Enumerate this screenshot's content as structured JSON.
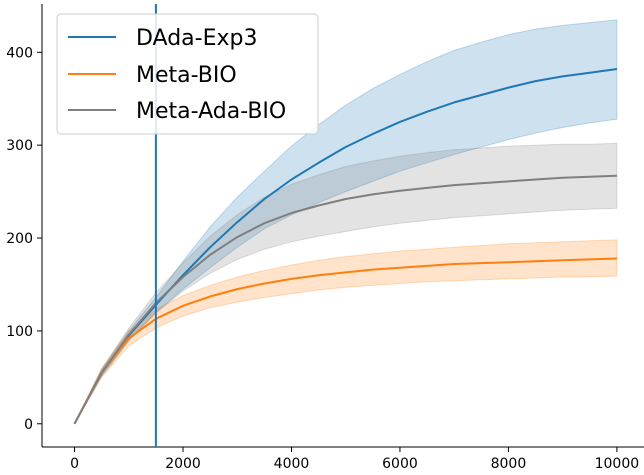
{
  "chart_data": {
    "type": "line",
    "title": "",
    "xlabel": "",
    "ylabel": "",
    "xlim": [
      -600,
      10500
    ],
    "ylim": [
      -25,
      452
    ],
    "xticks": [
      0,
      2000,
      4000,
      6000,
      8000,
      10000
    ],
    "xtick_labels": [
      "0",
      "2000",
      "4000",
      "6000",
      "8000",
      "10000"
    ],
    "yticks": [
      0,
      100,
      200,
      300,
      400
    ],
    "ytick_labels": [
      "0",
      "100",
      "200",
      "300",
      "400"
    ],
    "vline_x": 1500,
    "vline_color": "#1f77b4",
    "legend_position": "top-left",
    "grid": false,
    "x": [
      0,
      500,
      1000,
      1500,
      2000,
      2500,
      3000,
      3500,
      4000,
      4500,
      5000,
      5500,
      6000,
      6500,
      7000,
      7500,
      8000,
      8500,
      9000,
      9500,
      10000
    ],
    "series": [
      {
        "name": "DAda-Exp3",
        "color": "#1f77b4",
        "values": [
          0,
          55,
          95,
          128,
          160,
          190,
          217,
          242,
          263,
          281,
          298,
          312,
          325,
          336,
          346,
          354,
          362,
          369,
          374,
          378,
          382
        ],
        "lower": [
          0,
          52,
          90,
          120,
          145,
          168,
          190,
          210,
          225,
          238,
          250,
          261,
          272,
          281,
          290,
          298,
          306,
          313,
          319,
          324,
          328
        ],
        "upper": [
          0,
          58,
          100,
          136,
          175,
          212,
          244,
          272,
          299,
          322,
          343,
          361,
          376,
          390,
          402,
          411,
          419,
          425,
          429,
          432,
          435
        ]
      },
      {
        "name": "Meta-BIO",
        "color": "#ff7f0e",
        "values": [
          0,
          55,
          92,
          113,
          127,
          137,
          145,
          151,
          156,
          160,
          163,
          166,
          168,
          170,
          172,
          173,
          174,
          175,
          176,
          177,
          178
        ],
        "lower": [
          0,
          50,
          84,
          103,
          116,
          125,
          131,
          136,
          140,
          144,
          147,
          149,
          151,
          153,
          154,
          155,
          156,
          157,
          158,
          158,
          159
        ],
        "upper": [
          0,
          60,
          100,
          123,
          138,
          149,
          158,
          165,
          171,
          176,
          180,
          183,
          186,
          188,
          190,
          192,
          194,
          195,
          196,
          197,
          198
        ]
      },
      {
        "name": "Meta-Ada-BIO",
        "color": "#7f7f7f",
        "values": [
          0,
          55,
          96,
          130,
          158,
          182,
          201,
          216,
          227,
          235,
          242,
          247,
          251,
          254,
          257,
          259,
          261,
          263,
          265,
          266,
          267
        ],
        "lower": [
          0,
          51,
          89,
          119,
          143,
          162,
          177,
          188,
          196,
          202,
          207,
          212,
          216,
          219,
          222,
          224,
          226,
          228,
          230,
          231,
          232
        ],
        "upper": [
          0,
          59,
          103,
          141,
          173,
          202,
          225,
          244,
          258,
          268,
          277,
          283,
          288,
          292,
          295,
          297,
          299,
          300,
          301,
          301,
          302
        ]
      }
    ]
  }
}
